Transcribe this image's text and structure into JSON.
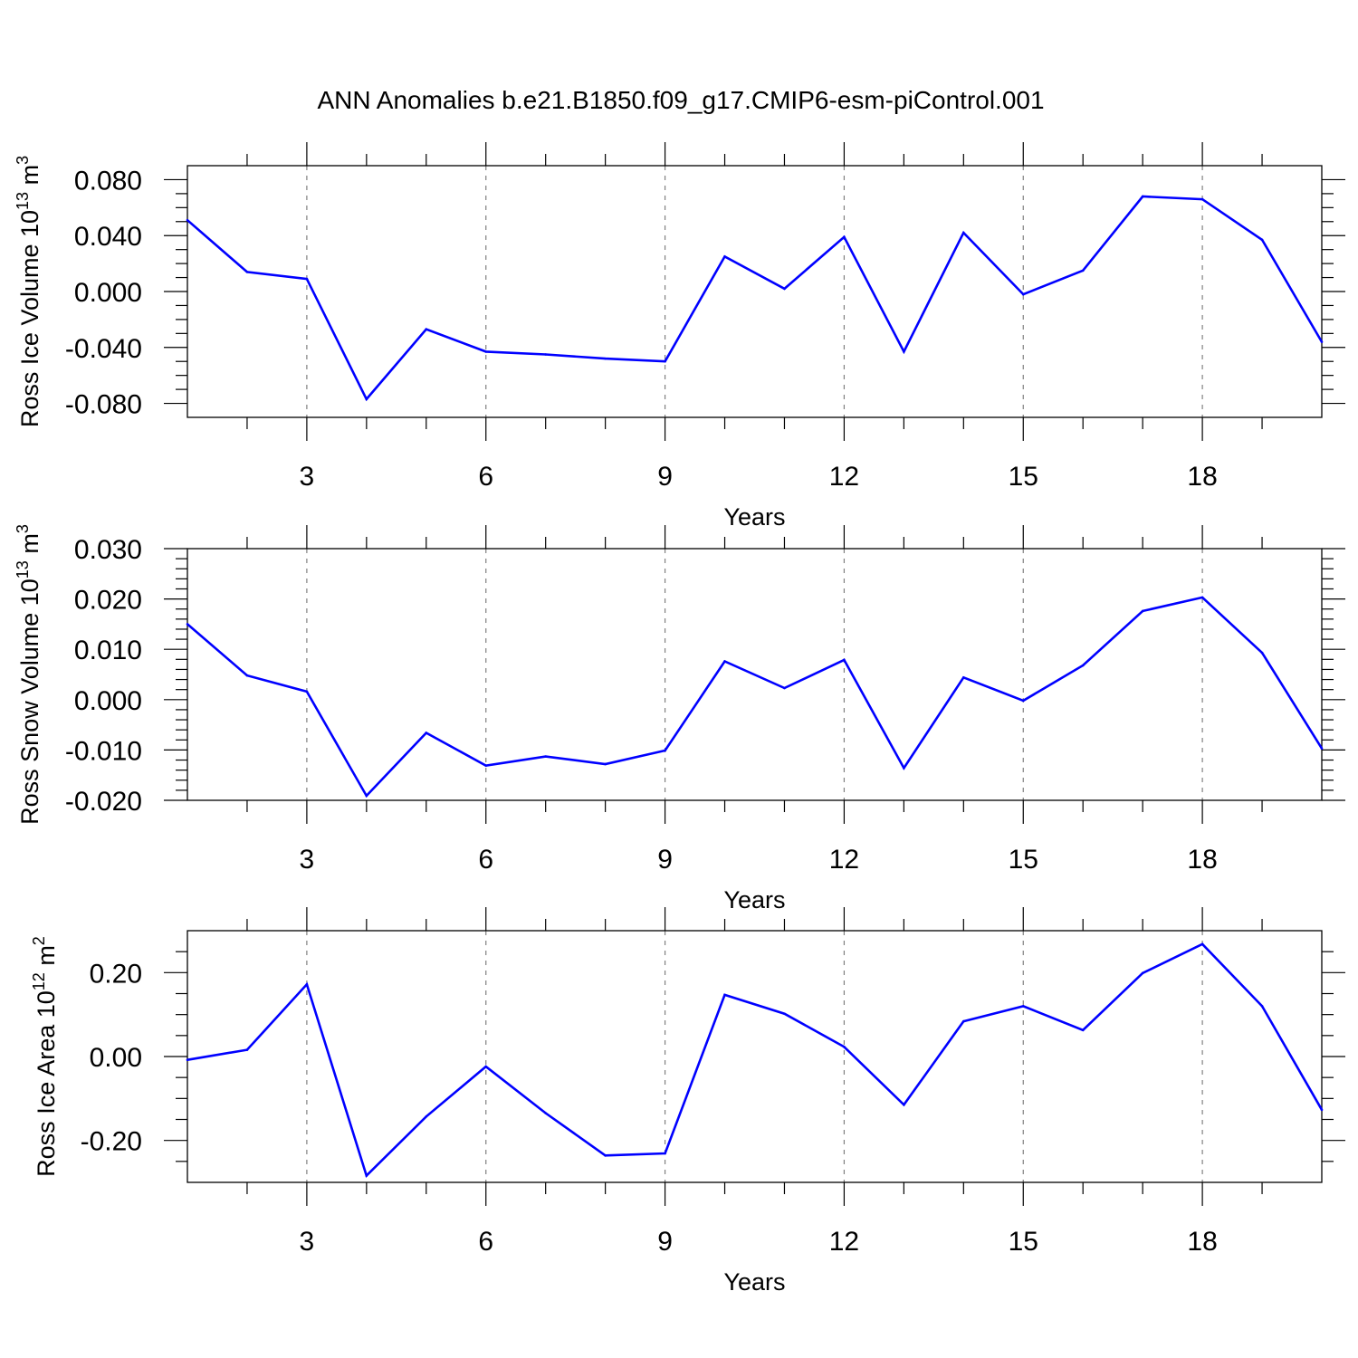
{
  "title": "ANN Anomalies b.e21.B1850.f09_g17.CMIP6-esm-piControl.001",
  "colors": {
    "line": "#0000ff",
    "axis": "#000000",
    "grid": "#808080",
    "background": "#ffffff"
  },
  "chart_data": [
    {
      "type": "line",
      "xlabel": "Years",
      "ylabel": "Ross Ice Volume 10",
      "ylabel_exp": "13",
      "ylabel_unit": " m",
      "ylabel_unit_exp": "3",
      "xlim": [
        1,
        20
      ],
      "ylim": [
        -0.09,
        0.09
      ],
      "xticks": [
        3,
        6,
        9,
        12,
        15,
        18
      ],
      "xtick_labels": [
        "3",
        "6",
        "9",
        "12",
        "15",
        "18"
      ],
      "yticks": [
        0.08,
        0.04,
        0.0,
        -0.04,
        -0.08
      ],
      "ytick_labels": [
        "0.080",
        "0.040",
        "0.000",
        "-0.040",
        "-0.080"
      ],
      "yminor_step": 0.01,
      "grid": "vertical dashed at major x ticks",
      "x": [
        1,
        2,
        3,
        4,
        5,
        6,
        7,
        8,
        9,
        10,
        11,
        12,
        13,
        14,
        15,
        16,
        17,
        18,
        19,
        20
      ],
      "values": [
        0.051,
        0.014,
        0.009,
        -0.077,
        -0.027,
        -0.043,
        -0.045,
        -0.048,
        -0.05,
        0.025,
        0.002,
        0.039,
        -0.043,
        0.042,
        -0.002,
        0.015,
        0.068,
        0.066,
        0.037,
        -0.036
      ]
    },
    {
      "type": "line",
      "xlabel": "Years",
      "ylabel": "Ross Snow Volume 10",
      "ylabel_exp": "13",
      "ylabel_unit": " m",
      "ylabel_unit_exp": "3",
      "xlim": [
        1,
        20
      ],
      "ylim": [
        -0.02,
        0.03
      ],
      "xticks": [
        3,
        6,
        9,
        12,
        15,
        18
      ],
      "xtick_labels": [
        "3",
        "6",
        "9",
        "12",
        "15",
        "18"
      ],
      "yticks": [
        0.03,
        0.02,
        0.01,
        0.0,
        -0.01,
        -0.02
      ],
      "ytick_labels": [
        "0.030",
        "0.020",
        "0.010",
        "0.000",
        "-0.010",
        "-0.020"
      ],
      "yminor_step": 0.002,
      "grid": "vertical dashed at major x ticks",
      "x": [
        1,
        2,
        3,
        4,
        5,
        6,
        7,
        8,
        9,
        10,
        11,
        12,
        13,
        14,
        15,
        16,
        17,
        18,
        19,
        20
      ],
      "values": [
        0.015,
        0.0048,
        0.0016,
        -0.0191,
        -0.0066,
        -0.0131,
        -0.0113,
        -0.0128,
        -0.0101,
        0.0076,
        0.0023,
        0.0079,
        -0.0136,
        0.0044,
        -0.0002,
        0.0068,
        0.0176,
        0.0203,
        0.0093,
        -0.0097
      ]
    },
    {
      "type": "line",
      "xlabel": "Years",
      "ylabel": "Ross Ice Area 10",
      "ylabel_exp": "12",
      "ylabel_unit": " m",
      "ylabel_unit_exp": "2",
      "xlim": [
        1,
        20
      ],
      "ylim": [
        -0.3,
        0.3
      ],
      "xticks": [
        3,
        6,
        9,
        12,
        15,
        18
      ],
      "xtick_labels": [
        "3",
        "6",
        "9",
        "12",
        "15",
        "18"
      ],
      "yticks": [
        0.2,
        0.0,
        -0.2
      ],
      "ytick_labels": [
        "0.20",
        "0.00",
        "-0.20"
      ],
      "yminor_step": 0.05,
      "grid": "vertical dashed at major x ticks",
      "x": [
        1,
        2,
        3,
        4,
        5,
        6,
        7,
        8,
        9,
        10,
        11,
        12,
        13,
        14,
        15,
        16,
        17,
        18,
        19,
        20
      ],
      "values": [
        -0.008,
        0.016,
        0.172,
        -0.284,
        -0.143,
        -0.024,
        -0.135,
        -0.236,
        -0.231,
        0.147,
        0.102,
        0.023,
        -0.115,
        0.084,
        0.12,
        0.063,
        0.199,
        0.268,
        0.12,
        -0.127
      ]
    }
  ]
}
